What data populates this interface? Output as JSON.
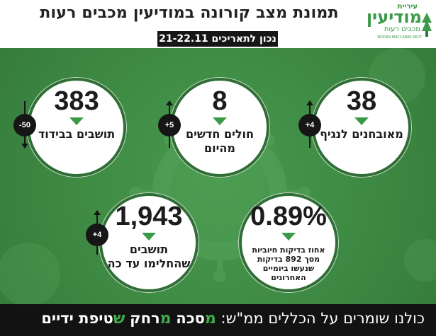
{
  "header": {
    "title": "תמונת מצב קורונה במודיעין מכבים רעות",
    "date_label": "נכון לתאריכים 21-22.11"
  },
  "logo": {
    "top_text": "עיריית",
    "main_text": "מודיעין",
    "sub_text": "מכבים רעות",
    "english_text": "MODIIN MACCABIM REUT",
    "color": "#3a9a48"
  },
  "stats": {
    "confirmed": {
      "value": "38",
      "label": "מאובחנים לנגיף",
      "change": "+4",
      "direction": "up"
    },
    "new_patients": {
      "value": "8",
      "label": "חולים חדשים מהיום",
      "change": "+5",
      "direction": "up"
    },
    "isolation": {
      "value": "383",
      "label": "תושבים בבידוד",
      "change": "-50",
      "direction": "down"
    },
    "positive_rate": {
      "value": "0.89%",
      "label": "אחוז בדיקות חיוביות מסך 892 בדיקות שנעשו ביומיים האחרונים"
    },
    "recovered": {
      "value": "1,943",
      "label": "תושבים שהחלימו עד כה",
      "change": "+4",
      "direction": "up"
    }
  },
  "footer": {
    "intro": "כולנו שומרים על הכללים ממ\"ש:",
    "rules": [
      {
        "letter": "מ",
        "rest": "סכה"
      },
      {
        "letter": "מ",
        "rest": "רחק"
      },
      {
        "letter": "ש",
        "rest": "טיפת ידיים"
      }
    ]
  },
  "colors": {
    "accent_green": "#3a9a48",
    "background_green": "#3f8c45",
    "dark": "#161616"
  }
}
